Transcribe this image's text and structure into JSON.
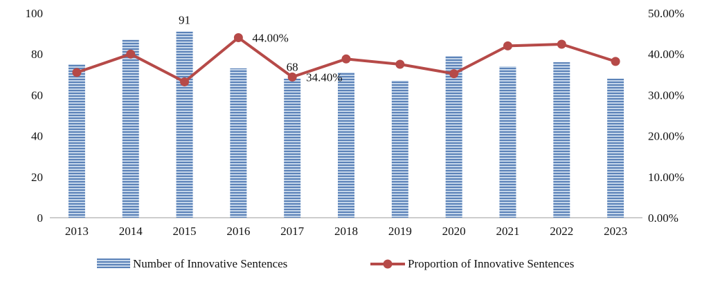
{
  "chart_data": {
    "type": "bar",
    "categories": [
      "2013",
      "2014",
      "2015",
      "2016",
      "2017",
      "2018",
      "2019",
      "2020",
      "2021",
      "2022",
      "2023"
    ],
    "series": [
      {
        "name": "Number of Innovative Sentences",
        "type": "bar",
        "axis": "left",
        "values": [
          75,
          87,
          91,
          73,
          68,
          71,
          67,
          79,
          74,
          76,
          68
        ]
      },
      {
        "name": "Proportion of Innovative Sentences",
        "type": "line",
        "axis": "right",
        "values": [
          0.355,
          0.4,
          0.332,
          0.44,
          0.344,
          0.388,
          0.375,
          0.352,
          0.42,
          0.424,
          0.382
        ]
      }
    ],
    "data_labels": [
      {
        "series": 0,
        "index": 2,
        "text": "91"
      },
      {
        "series": 0,
        "index": 4,
        "text": "68"
      },
      {
        "series": 1,
        "index": 3,
        "text": "44.00%"
      },
      {
        "series": 1,
        "index": 4,
        "text": "34.40%"
      }
    ],
    "y_left": {
      "ylim": [
        0,
        100
      ],
      "ticks": [
        0,
        20,
        40,
        60,
        80,
        100
      ],
      "tick_labels": [
        "0",
        "20",
        "40",
        "60",
        "80",
        "100"
      ]
    },
    "y_right": {
      "ylim": [
        0,
        0.5
      ],
      "ticks": [
        0,
        0.1,
        0.2,
        0.3,
        0.4,
        0.5
      ],
      "tick_labels": [
        "0.00%",
        "10.00%",
        "20.00%",
        "30.00%",
        "40.00%",
        "50.00%"
      ]
    },
    "grid": false,
    "legend": {
      "position": "bottom",
      "entries": [
        "Number of Innovative Sentences",
        "Proportion of Innovative Sentences"
      ]
    },
    "colors": {
      "bar_light": "#c5d6ea",
      "bar_dark": "#5b82b8",
      "line": "#b64a48"
    }
  }
}
